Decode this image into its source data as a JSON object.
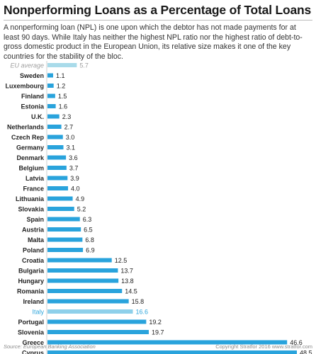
{
  "title": "Nonperforming Loans as a Percentage of Total Loans",
  "subtitle": "A nonperforming loan (NPL) is one upon which the debtor has not made payments for at least 90 days. While Italy has neither the highest NPL ratio nor the highest ratio of debt-to-gross domestic product in the European Union, its relative size makes it one of the key countries for the stability of the bloc.",
  "source": "Source: European Banking Association",
  "copyright": "Copyright Stratfor 2016  www.stratfor.com",
  "colors": {
    "bar": "#29a3dc",
    "highlight_bar": "#8ed0ea",
    "highlight_text": "#2fa6dc",
    "average_bar": "#a9dbea",
    "average_text": "#9e9e9e",
    "text": "#222222"
  },
  "chart_data": {
    "type": "bar",
    "orientation": "horizontal",
    "categories": [
      "EU average",
      "Sweden",
      "Luxembourg",
      "Finland",
      "Estonia",
      "U.K.",
      "Netherlands",
      "Czech Rep",
      "Germany",
      "Denmark",
      "Belgium",
      "Latvia",
      "France",
      "Lithuania",
      "Slovakia",
      "Spain",
      "Austria",
      "Malta",
      "Poland",
      "Croatia",
      "Bulgaria",
      "Hungary",
      "Romania",
      "Ireland",
      "Italy",
      "Portugal",
      "Slovenia",
      "Greece",
      "Cyprus"
    ],
    "values": [
      5.7,
      1.1,
      1.2,
      1.5,
      1.6,
      2.3,
      2.7,
      3.0,
      3.1,
      3.6,
      3.7,
      3.9,
      4.0,
      4.9,
      5.2,
      6.3,
      6.5,
      6.8,
      6.9,
      12.5,
      13.7,
      13.8,
      14.5,
      15.8,
      16.6,
      19.2,
      19.7,
      46.6,
      48.5
    ],
    "value_labels": [
      "5.7",
      "1.1",
      "1.2",
      "1.5",
      "1.6",
      "2.3",
      "2.7",
      "3.0",
      "3.1",
      "3.6",
      "3.7",
      "3.9",
      "4.0",
      "4.9",
      "5.2",
      "6.3",
      "6.5",
      "6.8",
      "6.9",
      "12.5",
      "13.7",
      "13.8",
      "14.5",
      "15.8",
      "16.6",
      "19.2",
      "19.7",
      "46.6",
      "48.5"
    ],
    "average_category": "EU average",
    "highlight_category": "Italy",
    "xlim": [
      0,
      48.5
    ],
    "grid": false,
    "legend": "none"
  }
}
